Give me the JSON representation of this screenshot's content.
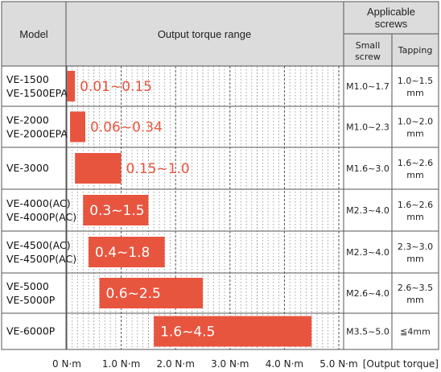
{
  "table": {
    "header": {
      "model": "Model",
      "range": "Output torque range",
      "applicable_line1": "Applicable",
      "applicable_line2": "screws",
      "small_line1": "Small",
      "small_line2": "screw",
      "tapping": "Tapping"
    },
    "rows": [
      {
        "model": [
          "VE-1500",
          "VE-1500EPA"
        ],
        "small_screw": "M1.0~1.7",
        "tapping": [
          "1.0~1.5",
          "mm"
        ]
      },
      {
        "model": [
          "VE-2000",
          "VE-2000EPA"
        ],
        "small_screw": "M1.0~2.3",
        "tapping": [
          "1.0~2.0",
          "mm"
        ]
      },
      {
        "model": [
          "VE-3000"
        ],
        "small_screw": "M1.6~3.0",
        "tapping": [
          "1.6~2.6",
          "mm"
        ]
      },
      {
        "model": [
          "VE-4000(AC)",
          "VE-4000P(AC)"
        ],
        "small_screw": "M2.3~4.0",
        "tapping": [
          "1.6~2.6",
          "mm"
        ]
      },
      {
        "model": [
          "VE-4500(AC)",
          "VE-4500P(AC)"
        ],
        "small_screw": "M2.3~4.0",
        "tapping": [
          "2.3~3.0",
          "mm"
        ]
      },
      {
        "model": [
          "VE-5000",
          "VE-5000P"
        ],
        "small_screw": "M2.6~4.0",
        "tapping": [
          "2.6~3.5",
          "mm"
        ]
      },
      {
        "model": [
          "VE-6000P"
        ],
        "small_screw": "M3.5~5.0",
        "tapping": [
          "≦4mm"
        ]
      }
    ]
  },
  "colors": {
    "bar": "#e8553f",
    "header_bg": "#dcdcdc",
    "border": "#555555",
    "grid_major": "#555555",
    "grid_minor": "#8a8a8a"
  },
  "chart_data": {
    "type": "bar",
    "orientation": "horizontal-range",
    "categories": [
      "VE-1500 / VE-1500EPA",
      "VE-2000 / VE-2000EPA",
      "VE-3000",
      "VE-4000(AC) / VE-4000P(AC)",
      "VE-4500(AC) / VE-4500P(AC)",
      "VE-5000 / VE-5000P",
      "VE-6000P"
    ],
    "ranges": [
      [
        0.01,
        0.15
      ],
      [
        0.06,
        0.34
      ],
      [
        0.15,
        1.0
      ],
      [
        0.3,
        1.5
      ],
      [
        0.4,
        1.8
      ],
      [
        0.6,
        2.5
      ],
      [
        1.6,
        4.5
      ]
    ],
    "labels": [
      "0.01~0.15",
      "0.06~0.34",
      "0.15~1.0",
      "0.3~1.5",
      "0.4~1.8",
      "0.6~2.5",
      "1.6~4.5"
    ],
    "xlim": [
      0,
      5.0
    ],
    "xticks": [
      0,
      1.0,
      2.0,
      3.0,
      4.0,
      5.0
    ],
    "xtick_labels": [
      "0 N·m",
      "1.0 N·m",
      "2.0 N·m",
      "3.0 N·m",
      "4.0 N·m",
      "5.0 N·m"
    ],
    "xlabel": "[Output torque]",
    "minor_grid_step": 0.1,
    "grid": true
  }
}
